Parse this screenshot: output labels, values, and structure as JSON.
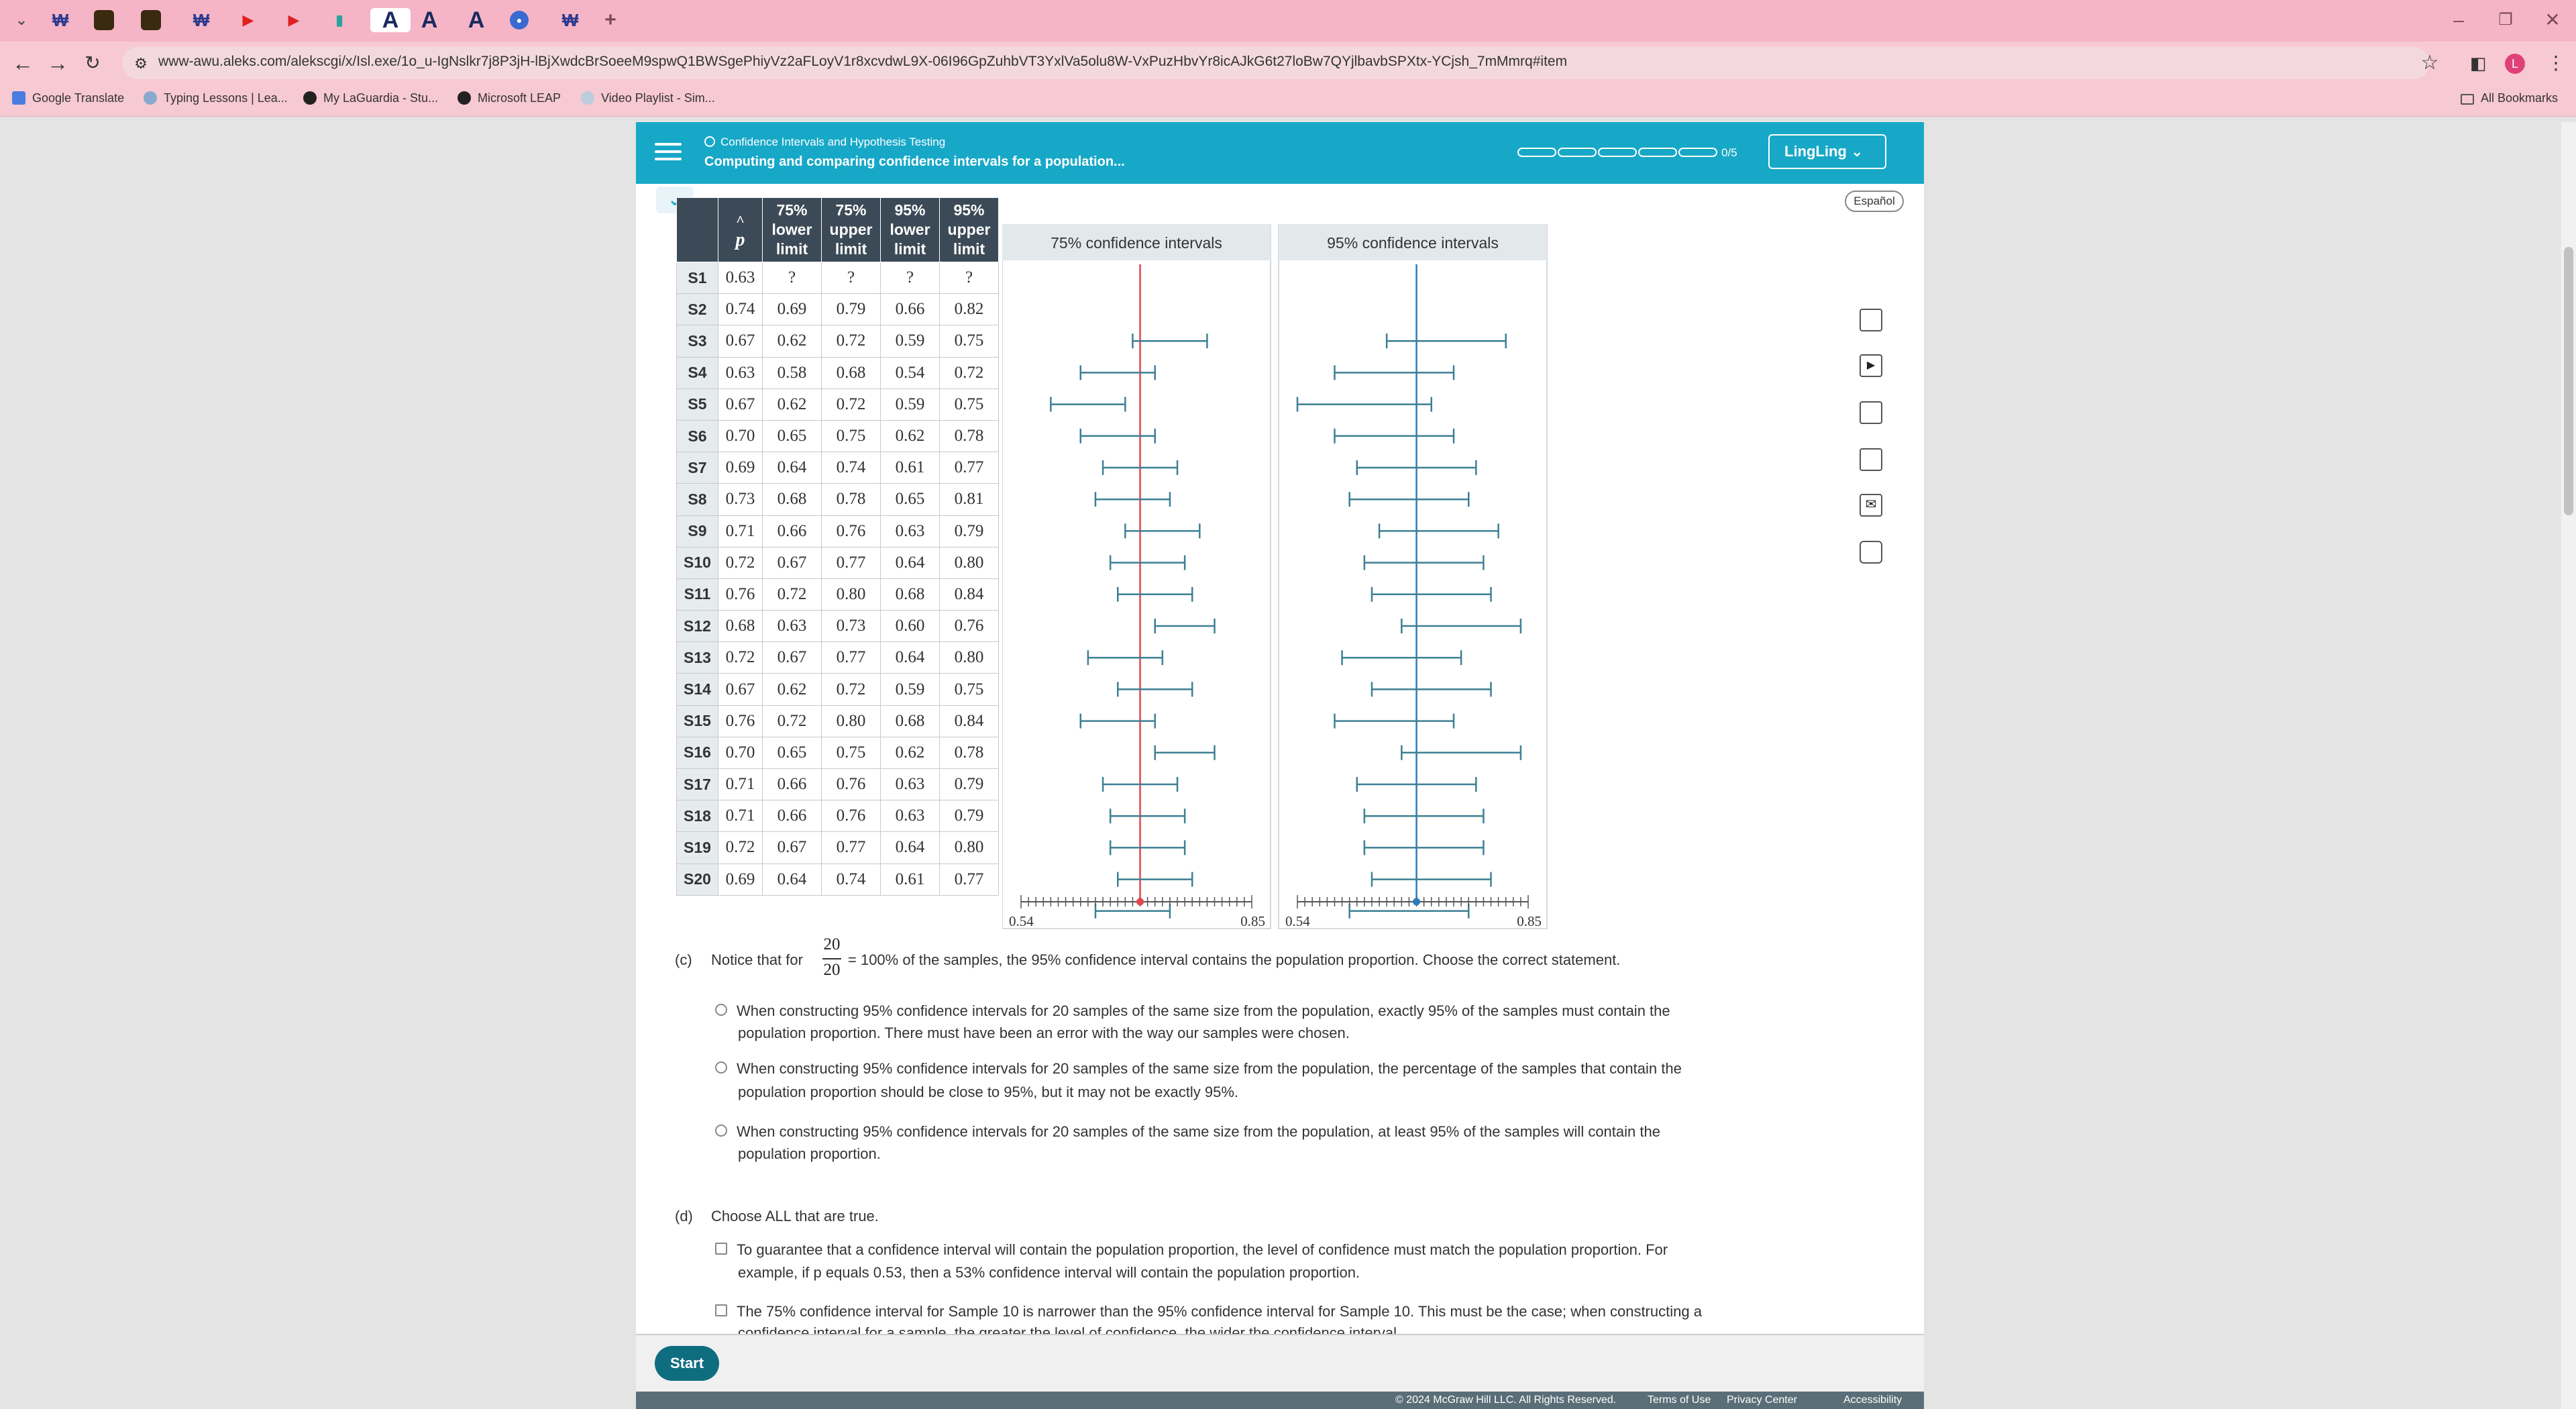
{
  "browser": {
    "url": "www-awu.aleks.com/alekscgi/x/Isl.exe/1o_u-IgNslkr7j8P3jH-lBjXwdcBrSoeeM9spwQ1BWSgePhiyVz2aFLoyV1r8xcvdwL9X-06I96GpZuhbVT3YxlVa5olu8W-VxPuzHbvYr8icAJkG6t27loBw7QYjlbavbSPXtx-YCjsh_7mMmrq#item",
    "bookmarks": [
      "Google Translate",
      "Typing Lessons | Lea...",
      "My LaGuardia - Stu...",
      "Microsoft LEAP",
      "Video Playlist - Sim..."
    ],
    "all_bookmarks": "All Bookmarks",
    "profile_initial": "L",
    "new_tab": "+"
  },
  "header": {
    "topic": "Confidence Intervals and Hypothesis Testing",
    "title": "Computing and comparing confidence intervals for a population...",
    "progress": "0/5",
    "user": "LingLing",
    "espanol": "Español"
  },
  "table": {
    "headers": [
      "",
      "p̂",
      "75% lower limit",
      "75% upper limit",
      "95% lower limit",
      "95% upper limit"
    ],
    "header_lines": [
      [
        "75%",
        "lower",
        "limit"
      ],
      [
        "75%",
        "upper",
        "limit"
      ],
      [
        "95%",
        "lower",
        "limit"
      ],
      [
        "95%",
        "upper",
        "limit"
      ]
    ],
    "phat_symbol": "p",
    "rows": [
      [
        "S1",
        "0.63",
        "?",
        "?",
        "?",
        "?"
      ],
      [
        "S2",
        "0.74",
        "0.69",
        "0.79",
        "0.66",
        "0.82"
      ],
      [
        "S3",
        "0.67",
        "0.62",
        "0.72",
        "0.59",
        "0.75"
      ],
      [
        "S4",
        "0.63",
        "0.58",
        "0.68",
        "0.54",
        "0.72"
      ],
      [
        "S5",
        "0.67",
        "0.62",
        "0.72",
        "0.59",
        "0.75"
      ],
      [
        "S6",
        "0.70",
        "0.65",
        "0.75",
        "0.62",
        "0.78"
      ],
      [
        "S7",
        "0.69",
        "0.64",
        "0.74",
        "0.61",
        "0.77"
      ],
      [
        "S8",
        "0.73",
        "0.68",
        "0.78",
        "0.65",
        "0.81"
      ],
      [
        "S9",
        "0.71",
        "0.66",
        "0.76",
        "0.63",
        "0.79"
      ],
      [
        "S10",
        "0.72",
        "0.67",
        "0.77",
        "0.64",
        "0.80"
      ],
      [
        "S11",
        "0.76",
        "0.72",
        "0.80",
        "0.68",
        "0.84"
      ],
      [
        "S12",
        "0.68",
        "0.63",
        "0.73",
        "0.60",
        "0.76"
      ],
      [
        "S13",
        "0.72",
        "0.67",
        "0.77",
        "0.64",
        "0.80"
      ],
      [
        "S14",
        "0.67",
        "0.62",
        "0.72",
        "0.59",
        "0.75"
      ],
      [
        "S15",
        "0.76",
        "0.72",
        "0.80",
        "0.68",
        "0.84"
      ],
      [
        "S16",
        "0.70",
        "0.65",
        "0.75",
        "0.62",
        "0.78"
      ],
      [
        "S17",
        "0.71",
        "0.66",
        "0.76",
        "0.63",
        "0.79"
      ],
      [
        "S18",
        "0.71",
        "0.66",
        "0.76",
        "0.63",
        "0.79"
      ],
      [
        "S19",
        "0.72",
        "0.67",
        "0.77",
        "0.64",
        "0.80"
      ],
      [
        "S20",
        "0.69",
        "0.64",
        "0.74",
        "0.61",
        "0.77"
      ]
    ]
  },
  "charts": {
    "panel75_title": "75% confidence intervals",
    "panel95_title": "95% confidence intervals",
    "axis_min_label": "0.54",
    "axis_max_label": "0.85",
    "axis_min": 0.54,
    "axis_max": 0.85,
    "population_proportion": 0.7,
    "color75_line": "#e0464b",
    "color95_line": "#2a7bbf",
    "interval_color": "#3d7f93"
  },
  "question_c": {
    "label": "(c)",
    "intro": "Notice that for",
    "frac_num": "20",
    "frac_den": "20",
    "after": "= 100% of the samples, the 95% confidence interval contains the population proportion. Choose the correct statement.",
    "options": [
      [
        "When constructing 95% confidence intervals for 20 samples of the same size from the population, exactly 95% of the samples must contain the",
        "population proportion. There must have been an error with the way our samples were chosen."
      ],
      [
        "When constructing 95% confidence intervals for 20 samples of the same size from the population, the percentage of the samples that contain the",
        "population proportion should be close to 95%, but it may not be exactly 95%."
      ],
      [
        "When constructing 95% confidence intervals for 20 samples of the same size from the population, at least 95% of the samples will contain the",
        "population proportion."
      ]
    ]
  },
  "question_d": {
    "label": "(d)",
    "intro": "Choose ALL that are true.",
    "options": [
      [
        "To guarantee that a confidence interval will contain the population proportion, the level of confidence must match the population proportion. For",
        "example, if p equals 0.53, then a 53% confidence interval will contain the population proportion."
      ],
      [
        "The 75% confidence interval for Sample 10 is narrower than the 95% confidence interval for Sample 10. This must be the case; when constructing a",
        "confidence interval for a sample, the greater the level of confidence, the wider the confidence interval."
      ]
    ]
  },
  "footer": {
    "start": "Start",
    "copyright": "© 2024 McGraw Hill LLC. All Rights Reserved.",
    "terms": "Terms of Use",
    "privacy": "Privacy Center",
    "accessibility": "Accessibility"
  }
}
